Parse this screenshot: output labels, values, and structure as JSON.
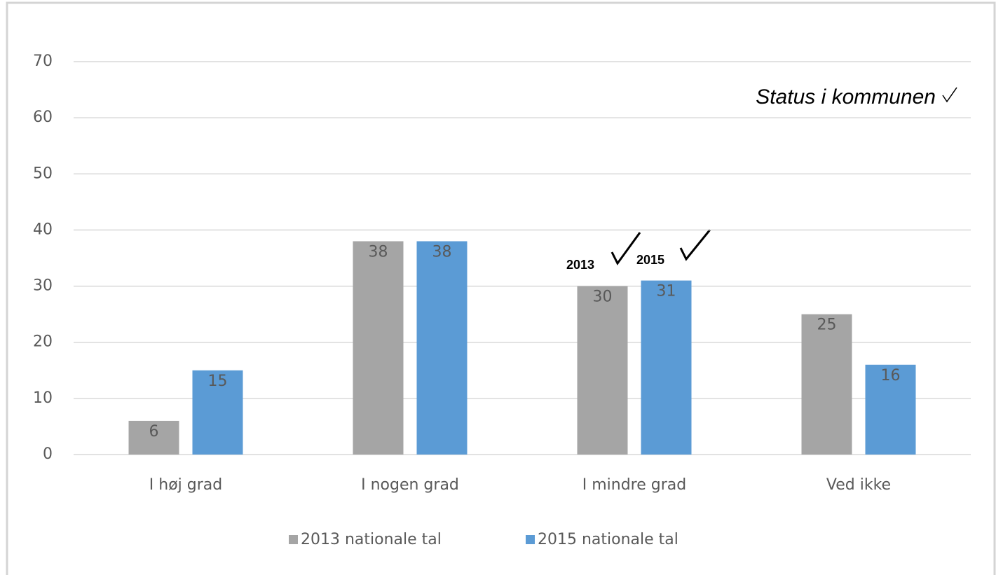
{
  "chart_data": {
    "type": "bar",
    "categories": [
      "I høj grad",
      "I nogen grad",
      "I mindre grad",
      "Ved ikke"
    ],
    "series": [
      {
        "name": "2013 nationale tal",
        "color": "#a5a5a5",
        "values": [
          6,
          38,
          30,
          25
        ]
      },
      {
        "name": "2015 nationale tal",
        "color": "#5b9bd5",
        "values": [
          15,
          38,
          31,
          16
        ]
      }
    ],
    "ylim": [
      0,
      70
    ],
    "yticks": [
      0,
      10,
      20,
      30,
      40,
      50,
      60,
      70
    ],
    "grid": true,
    "legend": "bottom",
    "annotations": [
      "Status i kommunen",
      "2013",
      "2015"
    ]
  }
}
